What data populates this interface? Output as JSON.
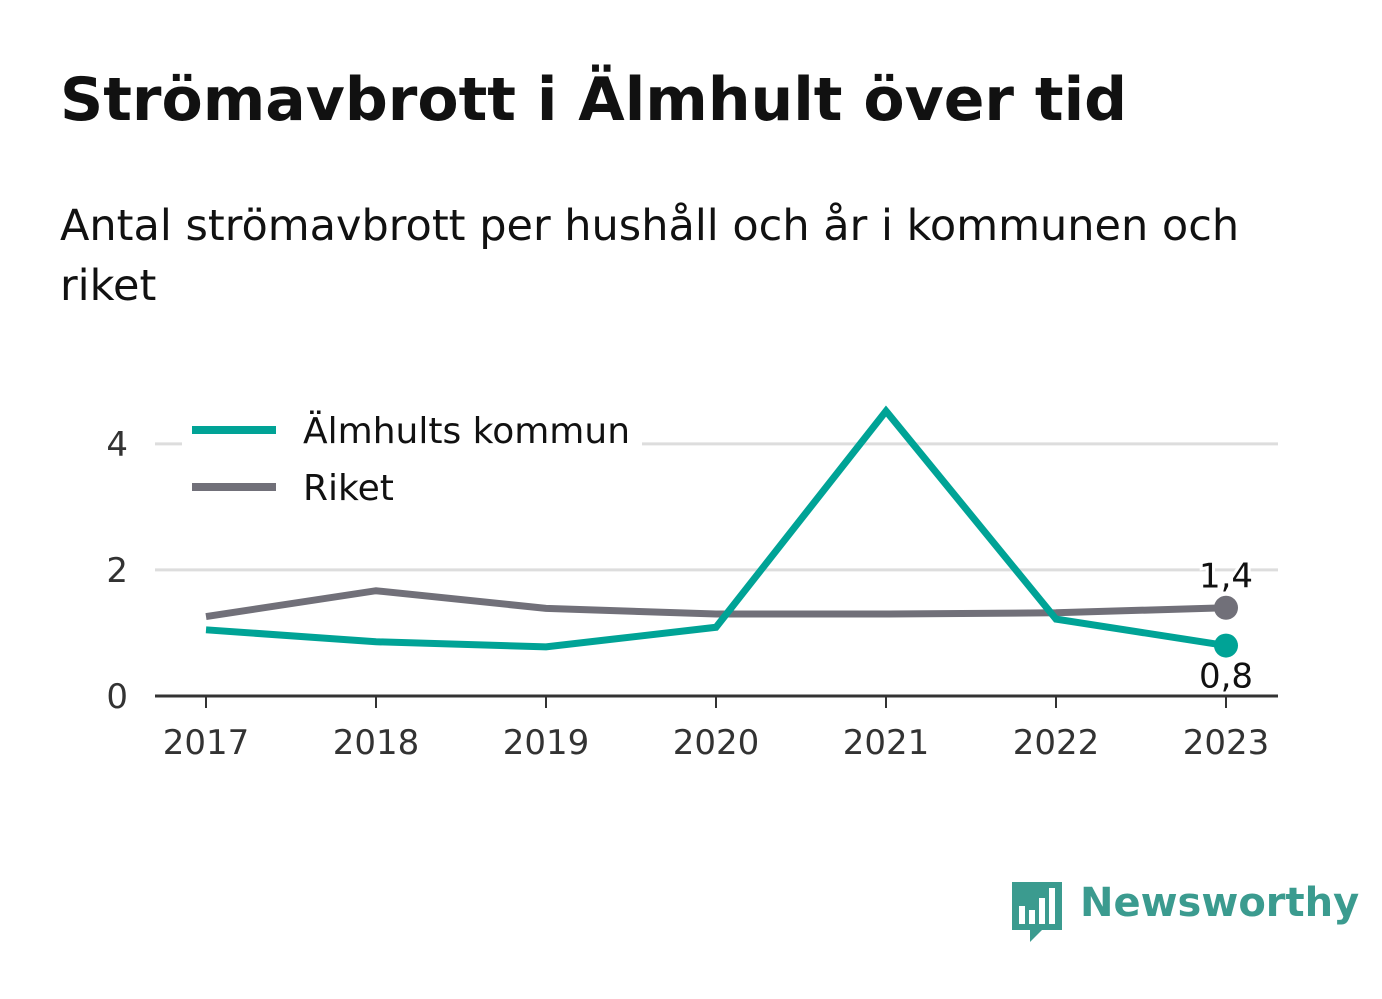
{
  "title": "Strömavbrott i Älmhult över tid",
  "subtitle": "Antal strömavbrott per hushåll och år i kommunen och riket",
  "brand": {
    "name": "Newsworthy",
    "icon": "bar-chart-speech-bubble-icon",
    "color": "#3b9b8f"
  },
  "chart_data": {
    "type": "line",
    "x": [
      "2017",
      "2018",
      "2019",
      "2020",
      "2021",
      "2022",
      "2023"
    ],
    "ylim": [
      0,
      4.6
    ],
    "yticks": [
      0,
      2,
      4
    ],
    "ytick_labels": [
      "0",
      "2",
      "4"
    ],
    "grid": true,
    "legend_position": "top-left",
    "series": [
      {
        "name": "Älmhults kommun",
        "color": "#00a396",
        "values": [
          1.05,
          0.86,
          0.78,
          1.09,
          4.52,
          1.22,
          0.8
        ],
        "end_label": "0,8",
        "end_label_position": "below"
      },
      {
        "name": "Riket",
        "color": "#717079",
        "values": [
          1.26,
          1.67,
          1.39,
          1.3,
          1.3,
          1.32,
          1.4
        ],
        "end_label": "1,4",
        "end_label_position": "above"
      }
    ]
  }
}
